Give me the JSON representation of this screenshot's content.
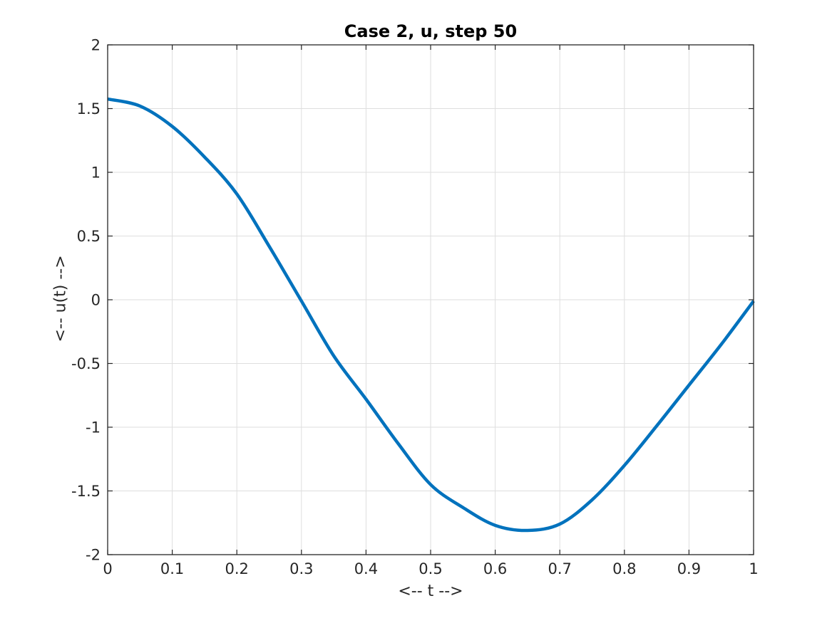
{
  "figure": {
    "background": "#ffffff"
  },
  "chart_data": {
    "type": "line",
    "title": "Case 2, u, step 50",
    "xlabel": "<-- t -->",
    "ylabel": "<-- u(t) -->",
    "xlim": [
      0,
      1
    ],
    "ylim": [
      -2,
      2
    ],
    "xticks": [
      0,
      0.1,
      0.2,
      0.3,
      0.4,
      0.5,
      0.6,
      0.7,
      0.8,
      0.9,
      1
    ],
    "xtick_labels": [
      "0",
      "0.1",
      "0.2",
      "0.3",
      "0.4",
      "0.5",
      "0.6",
      "0.7",
      "0.8",
      "0.9",
      "1"
    ],
    "yticks": [
      2,
      1.5,
      1,
      0.5,
      0,
      -0.5,
      -1,
      -1.5,
      -2
    ],
    "ytick_labels": [
      "2",
      "1.5",
      "1",
      "0.5",
      "0",
      "-0.5",
      "-1",
      "-1.5",
      "-2"
    ],
    "grid": true,
    "legend": "none",
    "colors": {
      "line": "#0072BD",
      "axis": "#262626",
      "grid": "#dedede",
      "title": "#000000"
    },
    "series": [
      {
        "name": "u",
        "color": "#0072BD",
        "line_width": 4.5,
        "x": [
          0,
          0.05,
          0.1,
          0.15,
          0.2,
          0.25,
          0.3,
          0.35,
          0.4,
          0.45,
          0.5,
          0.55,
          0.6,
          0.65,
          0.7,
          0.75,
          0.8,
          0.85,
          0.9,
          0.95,
          1.0
        ],
        "y": [
          1.575,
          1.52,
          1.36,
          1.12,
          0.83,
          0.42,
          -0.01,
          -0.44,
          -0.78,
          -1.13,
          -1.45,
          -1.63,
          -1.77,
          -1.81,
          -1.76,
          -1.57,
          -1.3,
          -0.99,
          -0.67,
          -0.35,
          -0.01
        ]
      }
    ],
    "annotations": {
      "start_value": 1.575,
      "min_value": -1.81,
      "min_t": 0.65,
      "zero_crossing_t": 0.3,
      "end_value": -0.01
    }
  }
}
